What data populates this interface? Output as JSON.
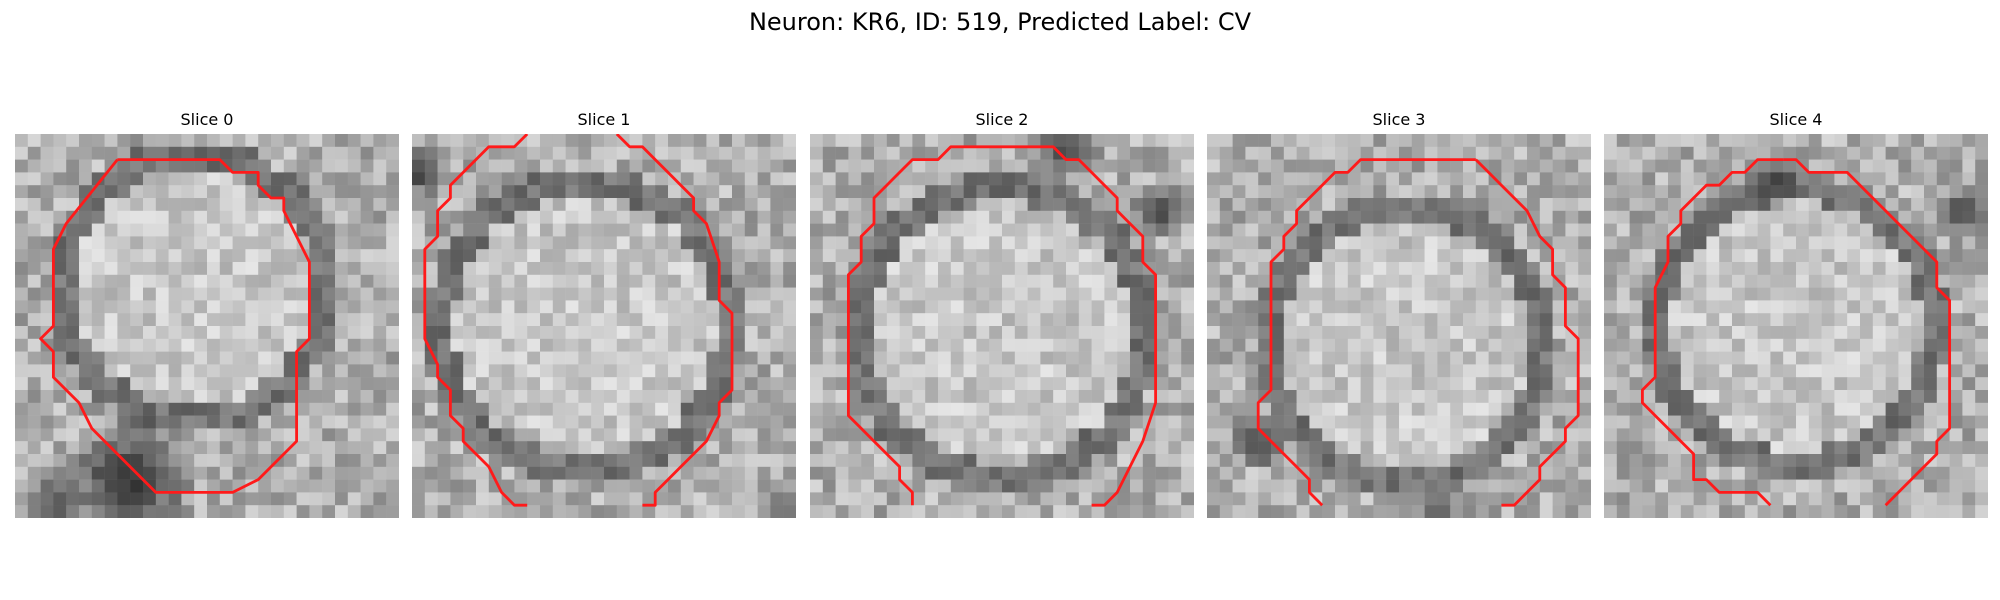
{
  "figure": {
    "title": "Neuron: KR6, ID: 519, Predicted Label: CV"
  },
  "colors": {
    "contour": "#ff1a1a",
    "background": "#ffffff"
  },
  "panels": [
    {
      "title": "Slice 0"
    },
    {
      "title": "Slice 1"
    },
    {
      "title": "Slice 2"
    },
    {
      "title": "Slice 3"
    },
    {
      "title": "Slice 4"
    }
  ]
}
